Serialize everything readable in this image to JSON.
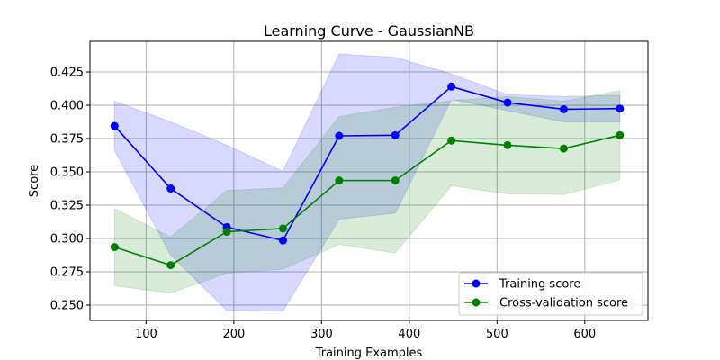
{
  "chart_data": {
    "type": "line",
    "title": "Learning Curve - GaussianNB",
    "xlabel": "Training Examples",
    "ylabel": "Score",
    "xlim": [
      36,
      672
    ],
    "ylim": [
      0.2385,
      0.448
    ],
    "xticks": [
      100,
      200,
      300,
      400,
      500,
      600
    ],
    "xtick_labels": [
      "100",
      "200",
      "300",
      "400",
      "500",
      "600"
    ],
    "yticks": [
      0.25,
      0.275,
      0.3,
      0.325,
      0.35,
      0.375,
      0.4,
      0.425
    ],
    "ytick_labels": [
      "0.250",
      "0.275",
      "0.300",
      "0.325",
      "0.350",
      "0.375",
      "0.400",
      "0.425"
    ],
    "grid": true,
    "legend_position": "lower-right",
    "x": [
      64,
      128,
      192,
      256,
      320,
      384,
      448,
      512,
      576,
      640
    ],
    "series": [
      {
        "name": "Training score",
        "color": "#0000ff",
        "values": [
          0.3845,
          0.3375,
          0.3085,
          0.2985,
          0.377,
          0.3775,
          0.414,
          0.402,
          0.397,
          0.3975
        ],
        "upper": [
          0.403,
          0.3875,
          0.37,
          0.3505,
          0.4385,
          0.436,
          0.4235,
          0.408,
          0.4065,
          0.4075
        ],
        "lower": [
          0.366,
          0.2875,
          0.246,
          0.2455,
          0.3145,
          0.319,
          0.4045,
          0.396,
          0.3875,
          0.3875
        ]
      },
      {
        "name": "Cross-validation score",
        "color": "#008000",
        "values": [
          0.2935,
          0.28,
          0.305,
          0.3075,
          0.3435,
          0.3435,
          0.3735,
          0.37,
          0.3675,
          0.3775
        ],
        "upper": [
          0.3225,
          0.301,
          0.336,
          0.338,
          0.3915,
          0.3985,
          0.4035,
          0.4065,
          0.403,
          0.411
        ],
        "lower": [
          0.2645,
          0.259,
          0.274,
          0.277,
          0.2955,
          0.289,
          0.3395,
          0.3335,
          0.333,
          0.344
        ]
      }
    ]
  }
}
